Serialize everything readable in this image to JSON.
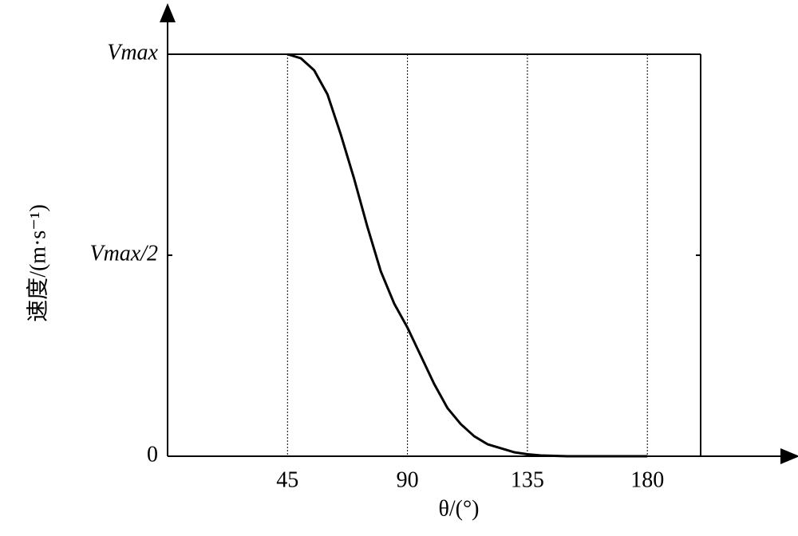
{
  "chart_data": {
    "type": "line",
    "xlabel": "θ/(°)",
    "ylabel": "速度/(m·s⁻¹)",
    "x": [
      45,
      50,
      55,
      60,
      65,
      70,
      75,
      80,
      85,
      90,
      95,
      100,
      105,
      110,
      115,
      120,
      125,
      130,
      135,
      140,
      150,
      160,
      170,
      180
    ],
    "series": [
      {
        "color": "#000000",
        "values": [
          1,
          0.99,
          0.96,
          0.9,
          0.8,
          0.69,
          0.57,
          0.46,
          0.38,
          0.32,
          0.25,
          0.18,
          0.12,
          0.08,
          0.05,
          0.03,
          0.02,
          0.01,
          0.005,
          0.002,
          0,
          0,
          0,
          0
        ]
      }
    ],
    "xlim": [
      0,
      200
    ],
    "xticks": [
      45,
      90,
      135,
      180
    ],
    "ylim": [
      0,
      1
    ],
    "yticks": [
      0,
      {
        "value": 0.5,
        "label": "Vmax/2"
      },
      {
        "value": 1,
        "label": "Vmax"
      }
    ],
    "grid": true
  }
}
